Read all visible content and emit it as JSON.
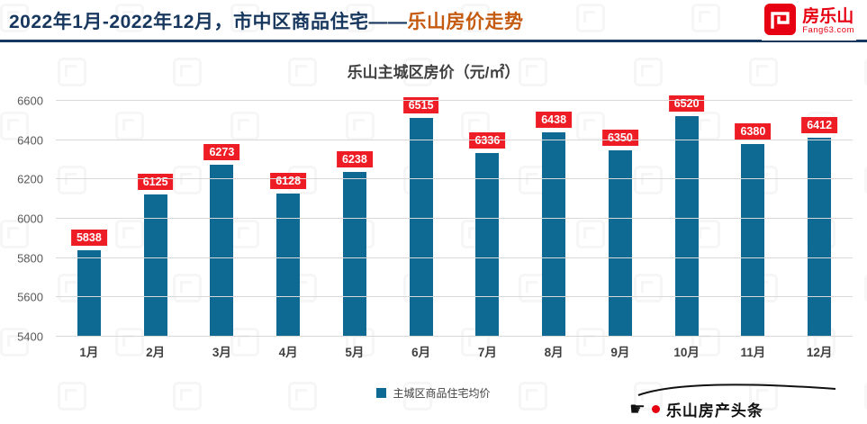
{
  "header": {
    "title_prefix": "2022年1月-2022年12月，市中区商品住宅——",
    "title_accent": "乐山房价走势",
    "logo_name": "房乐山",
    "logo_domain": "Fang63.com"
  },
  "chart_data": {
    "type": "bar",
    "title": "乐山主城区房价（元/㎡）",
    "categories": [
      "1月",
      "2月",
      "3月",
      "4月",
      "5月",
      "6月",
      "7月",
      "8月",
      "9月",
      "10月",
      "11月",
      "12月"
    ],
    "values": [
      5838,
      6125,
      6273,
      6128,
      6238,
      6515,
      6336,
      6438,
      6350,
      6520,
      6380,
      6412
    ],
    "ylim": [
      5400,
      6600
    ],
    "yticks": [
      5400,
      5600,
      5800,
      6000,
      6200,
      6400,
      6600
    ],
    "grid": true,
    "legend": [
      "主城区商品住宅均价"
    ],
    "legend_position": "bottom"
  },
  "footer": {
    "brand": "乐山房产头条"
  },
  "colors": {
    "title_navy": "#17375e",
    "title_accent": "#c55a11",
    "logo_red": "#e60012",
    "bar_blue": "#0e6a93",
    "value_label_bg": "#ee1c25",
    "value_label_text": "#ffffff"
  }
}
